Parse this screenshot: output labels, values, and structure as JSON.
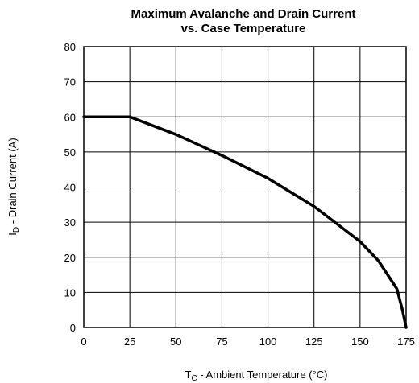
{
  "chart_data": {
    "type": "line",
    "title_line1": "Maximum Avalanche and Drain Current",
    "title_line2": "vs. Case Temperature",
    "xlabel_main": "T",
    "xlabel_sub": "C",
    "xlabel_rest": " - Ambient Temperature (°C)",
    "ylabel_main": "I",
    "ylabel_sub": "D",
    "ylabel_rest": " - Drain Current (A)",
    "xlim": [
      0,
      175
    ],
    "ylim": [
      0,
      80
    ],
    "xticks": [
      "0",
      "25",
      "50",
      "75",
      "100",
      "125",
      "150",
      "175"
    ],
    "yticks": [
      "0",
      "10",
      "20",
      "30",
      "40",
      "50",
      "60",
      "70",
      "80"
    ],
    "grid": true,
    "series": [
      {
        "x": [
          0,
          25,
          50,
          75,
          100,
          125,
          150,
          160,
          170,
          173,
          175
        ],
        "y": [
          60,
          60,
          55,
          49,
          42.5,
          34.5,
          24.5,
          19,
          11,
          5,
          0
        ]
      }
    ]
  }
}
